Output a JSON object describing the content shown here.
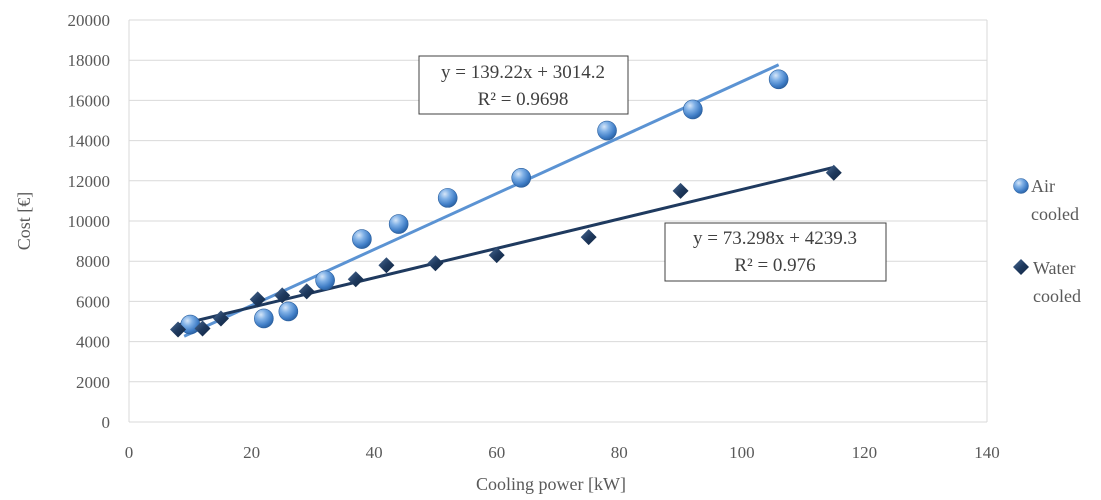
{
  "chart_data": {
    "type": "scatter",
    "xlabel": "Cooling power [kW]",
    "ylabel": "Cost [€]",
    "xlim": [
      0,
      140
    ],
    "ylim": [
      0,
      20000
    ],
    "xticks": [
      0,
      20,
      40,
      60,
      80,
      100,
      120,
      140
    ],
    "yticks": [
      0,
      2000,
      4000,
      6000,
      8000,
      10000,
      12000,
      14000,
      16000,
      18000,
      20000
    ],
    "grid": "horizontal",
    "legend_position": "right",
    "series": [
      {
        "name": "Air cooled",
        "legend_lines": [
          "Air",
          "cooled"
        ],
        "marker": "sphere",
        "color": "#4a86cf",
        "points": [
          [
            10,
            4850
          ],
          [
            22,
            5150
          ],
          [
            26,
            5500
          ],
          [
            32,
            7050
          ],
          [
            38,
            9100
          ],
          [
            44,
            9850
          ],
          [
            52,
            11150
          ],
          [
            64,
            12150
          ],
          [
            78,
            14500
          ],
          [
            92,
            15550
          ],
          [
            106,
            17050
          ]
        ],
        "trendline": {
          "slope": 139.22,
          "intercept": 3014.2,
          "x_range": [
            9,
            106
          ],
          "color": "#5b93d3",
          "equation": "y = 139.22x + 3014.2",
          "r2": "R² = 0.9698"
        }
      },
      {
        "name": "Water cooled",
        "legend_lines": [
          "Water",
          "cooled"
        ],
        "marker": "diamond",
        "color": "#1f3a5f",
        "points": [
          [
            8,
            4600
          ],
          [
            12,
            4650
          ],
          [
            15,
            5150
          ],
          [
            21,
            6100
          ],
          [
            25,
            6300
          ],
          [
            29,
            6500
          ],
          [
            37,
            7100
          ],
          [
            42,
            7800
          ],
          [
            50,
            7900
          ],
          [
            60,
            8300
          ],
          [
            75,
            9200
          ],
          [
            90,
            11500
          ],
          [
            115,
            12400
          ]
        ],
        "trendline": {
          "slope": 73.298,
          "intercept": 4239.3,
          "x_range": [
            8,
            115
          ],
          "color": "#1f3a5f",
          "equation": "y = 73.298x + 4239.3",
          "r2": "R² = 0.976"
        }
      }
    ]
  }
}
